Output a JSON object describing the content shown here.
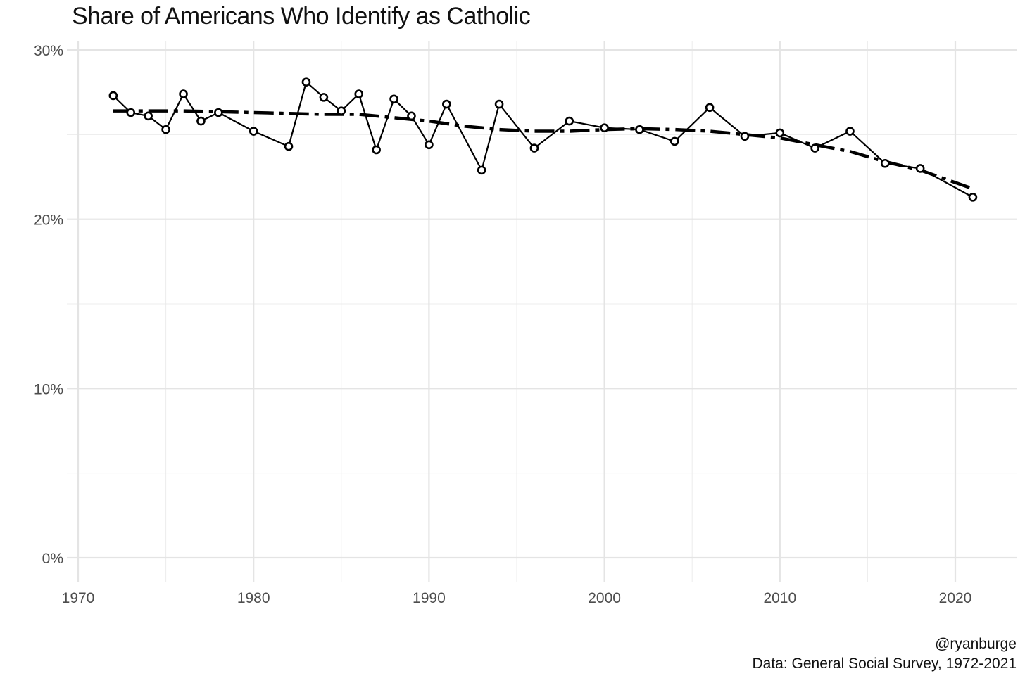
{
  "chart_data": {
    "type": "line",
    "title": "Share of Americans Who Identify as Catholic",
    "xlabel": "",
    "ylabel": "",
    "xlim": [
      1970,
      2023
    ],
    "ylim": [
      0,
      30
    ],
    "x_ticks": [
      1970,
      1980,
      1990,
      2000,
      2010,
      2020
    ],
    "y_ticks": [
      0,
      10,
      20,
      30
    ],
    "y_tick_labels": [
      "0%",
      "10%",
      "20%",
      "30%"
    ],
    "grid": true,
    "series": [
      {
        "style": "solid line with open circle markers",
        "x": [
          1972,
          1973,
          1974,
          1975,
          1976,
          1977,
          1978,
          1980,
          1982,
          1983,
          1984,
          1985,
          1986,
          1987,
          1988,
          1989,
          1990,
          1991,
          1993,
          1994,
          1996,
          1998,
          2000,
          2002,
          2004,
          2006,
          2008,
          2010,
          2012,
          2014,
          2016,
          2018,
          2021
        ],
        "y": [
          27.3,
          26.3,
          26.1,
          25.3,
          27.4,
          25.8,
          26.3,
          25.2,
          24.3,
          28.1,
          27.2,
          26.4,
          27.4,
          24.1,
          27.1,
          26.1,
          24.4,
          26.8,
          22.9,
          26.8,
          24.2,
          25.8,
          25.4,
          25.3,
          24.6,
          26.6,
          24.9,
          25.1,
          24.2,
          25.2,
          23.3,
          23.0,
          21.3
        ]
      },
      {
        "style": "dash-dot trend line",
        "x": [
          1972,
          1976,
          1980,
          1984,
          1986,
          1988,
          1990,
          1992,
          1994,
          1996,
          1998,
          2000,
          2002,
          2004,
          2006,
          2008,
          2010,
          2012,
          2014,
          2016,
          2018,
          2021
        ],
        "y": [
          26.4,
          26.4,
          26.3,
          26.2,
          26.2,
          26.0,
          25.8,
          25.5,
          25.3,
          25.2,
          25.2,
          25.3,
          25.35,
          25.3,
          25.2,
          25.0,
          24.8,
          24.4,
          24.0,
          23.4,
          22.9,
          21.8
        ]
      }
    ],
    "caption": [
      "@ryanburge",
      "Data: General Social Survey, 1972-2021"
    ]
  }
}
